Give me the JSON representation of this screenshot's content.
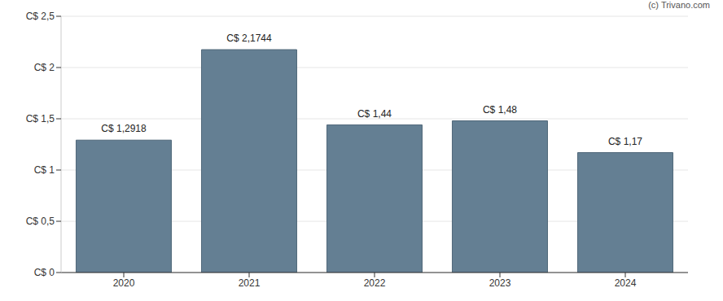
{
  "chart_data": {
    "type": "bar",
    "annotation": "(c) Trivano.com",
    "categories": [
      "2020",
      "2021",
      "2022",
      "2023",
      "2024"
    ],
    "values": [
      1.2918,
      2.1744,
      1.44,
      1.48,
      1.17
    ],
    "value_labels": [
      "C$ 1,2918",
      "C$ 2,1744",
      "C$ 1,44",
      "C$ 1,48",
      "C$ 1,17"
    ],
    "data_labels": true,
    "color": "#647f93",
    "ylim": [
      0,
      2.5
    ],
    "yticks": [
      {
        "value": 0,
        "label": "C$ 0"
      },
      {
        "value": 0.5,
        "label": "C$ 0,5"
      },
      {
        "value": 1,
        "label": "C$ 1"
      },
      {
        "value": 1.5,
        "label": "C$ 1,5"
      },
      {
        "value": 2,
        "label": "C$ 2"
      },
      {
        "value": 2.5,
        "label": "C$ 2,5"
      }
    ],
    "grid": true
  }
}
